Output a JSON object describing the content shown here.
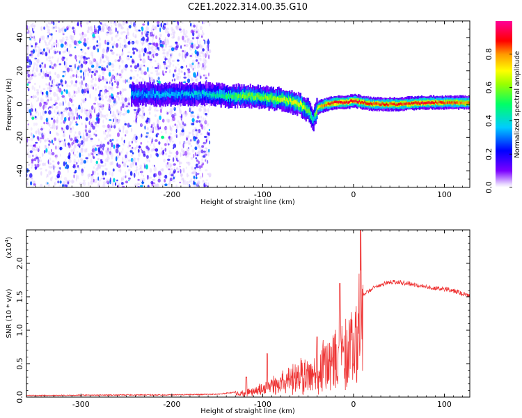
{
  "chart_data": [
    {
      "type": "heatmap",
      "title": "C2E1.2022.314.00.35.G10",
      "xlabel": "Height of straight line (km)",
      "ylabel": "Frequency (Hz)",
      "xlim": [
        -360,
        128
      ],
      "ylim": [
        -50,
        50
      ],
      "x_ticks": [
        -300,
        -200,
        -100,
        0,
        100
      ],
      "y_ticks": [
        -40,
        -20,
        0,
        20,
        40
      ],
      "grid": false,
      "colorbar": {
        "label": "Normalized spectral amplitude",
        "ticks": [
          "0.0",
          "0.2",
          "0.4",
          "0.6",
          "0.8"
        ],
        "range": [
          0,
          1
        ],
        "colormap": "rainbow",
        "colors": [
          "#ffffff",
          "#7b00ff",
          "#0000ff",
          "#00ffff",
          "#00ff00",
          "#ffff00",
          "#ff8000",
          "#ff0000",
          "#ff00b0"
        ]
      },
      "noise_region": {
        "x_range": [
          -360,
          -158
        ],
        "note": "scattered low-amplitude speckle"
      },
      "ridge": {
        "x": [
          -240,
          -200,
          -160,
          -140,
          -120,
          -100,
          -80,
          -60,
          -50,
          -45,
          -40,
          -30,
          -20,
          -10,
          0,
          20,
          50,
          80,
          100,
          128
        ],
        "y": [
          6,
          6,
          6,
          5,
          5,
          4,
          3,
          0,
          -4,
          -10,
          -2,
          0,
          1,
          1,
          2,
          0,
          0,
          1,
          1,
          1
        ],
        "peak_amplitude": [
          0.35,
          0.35,
          0.4,
          0.5,
          0.6,
          0.6,
          0.65,
          0.7,
          0.6,
          0.4,
          0.7,
          0.85,
          0.9,
          0.9,
          0.9,
          0.85,
          0.85,
          0.9,
          0.85,
          0.8
        ]
      }
    },
    {
      "type": "line",
      "xlabel": "Height of straight line (km)",
      "ylabel": "SNR (10 * v/v)",
      "scale_note": "(x10",
      "scale_exp": "4",
      "xlim": [
        -360,
        128
      ],
      "ylim": [
        0,
        2.5
      ],
      "x_ticks": [
        -300,
        -200,
        -100,
        0,
        100
      ],
      "y_ticks": [
        "0.0",
        "0.5",
        "1.0",
        "1.5",
        "2.0"
      ],
      "grid": false,
      "series": [
        {
          "color": "#ee3333",
          "envelope_x": [
            -360,
            -250,
            -200,
            -150,
            -130,
            -110,
            -100,
            -90,
            -80,
            -70,
            -60,
            -50,
            -40,
            -30,
            -20,
            -10,
            0,
            5,
            10,
            20,
            30,
            40,
            50,
            60,
            70,
            80,
            90,
            100,
            110,
            120,
            128
          ],
          "envelope_y": [
            0.03,
            0.04,
            0.04,
            0.05,
            0.08,
            0.15,
            0.22,
            0.3,
            0.4,
            0.45,
            0.55,
            0.6,
            0.7,
            0.85,
            1.0,
            1.2,
            1.3,
            1.45,
            1.55,
            1.65,
            1.7,
            1.75,
            1.75,
            1.73,
            1.7,
            1.68,
            1.65,
            1.65,
            1.62,
            1.58,
            1.55
          ],
          "spikes": [
            [
              8,
              2.5
            ],
            [
              -15,
              1.7
            ],
            [
              -40,
              0.9
            ],
            [
              -95,
              0.65
            ],
            [
              -118,
              0.3
            ]
          ]
        }
      ]
    }
  ]
}
